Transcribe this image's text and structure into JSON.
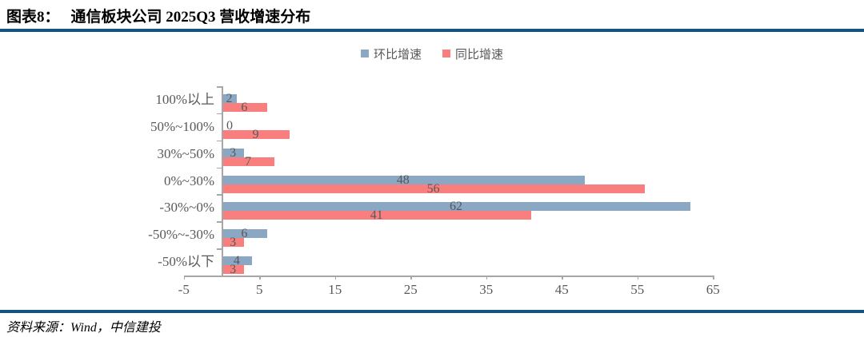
{
  "header": {
    "figure_label": "图表8：",
    "title": "通信板块公司 2025Q3 营收增速分布"
  },
  "footer": {
    "source": "资料来源：Wind，中信建投"
  },
  "colors": {
    "accent_rule": "#14537F",
    "series_qoq": "#8AA7C4",
    "series_yoy": "#F97F7F",
    "axis": "#A6A6A6",
    "chart_text": "#595959"
  },
  "chart_data": {
    "type": "bar",
    "orientation": "horizontal",
    "title": "通信板块公司 2025Q3 营收增速分布",
    "categories": [
      "100%以上",
      "50%~100%",
      "30%~50%",
      "0%~30%",
      "-30%~0%",
      "-50%~-30%",
      "-50%以下"
    ],
    "series": [
      {
        "name": "环比增速",
        "color": "#8AA7C4",
        "values": [
          2,
          0,
          3,
          48,
          62,
          6,
          4
        ]
      },
      {
        "name": "同比增速",
        "color": "#F97F7F",
        "values": [
          6,
          9,
          7,
          56,
          41,
          3,
          3
        ]
      }
    ],
    "xlim": [
      -5,
      65
    ],
    "xticks": [
      -5,
      5,
      15,
      25,
      35,
      45,
      55,
      65
    ],
    "legend_position": "top-center",
    "grid": false,
    "value_labels": "center-of-bar"
  }
}
